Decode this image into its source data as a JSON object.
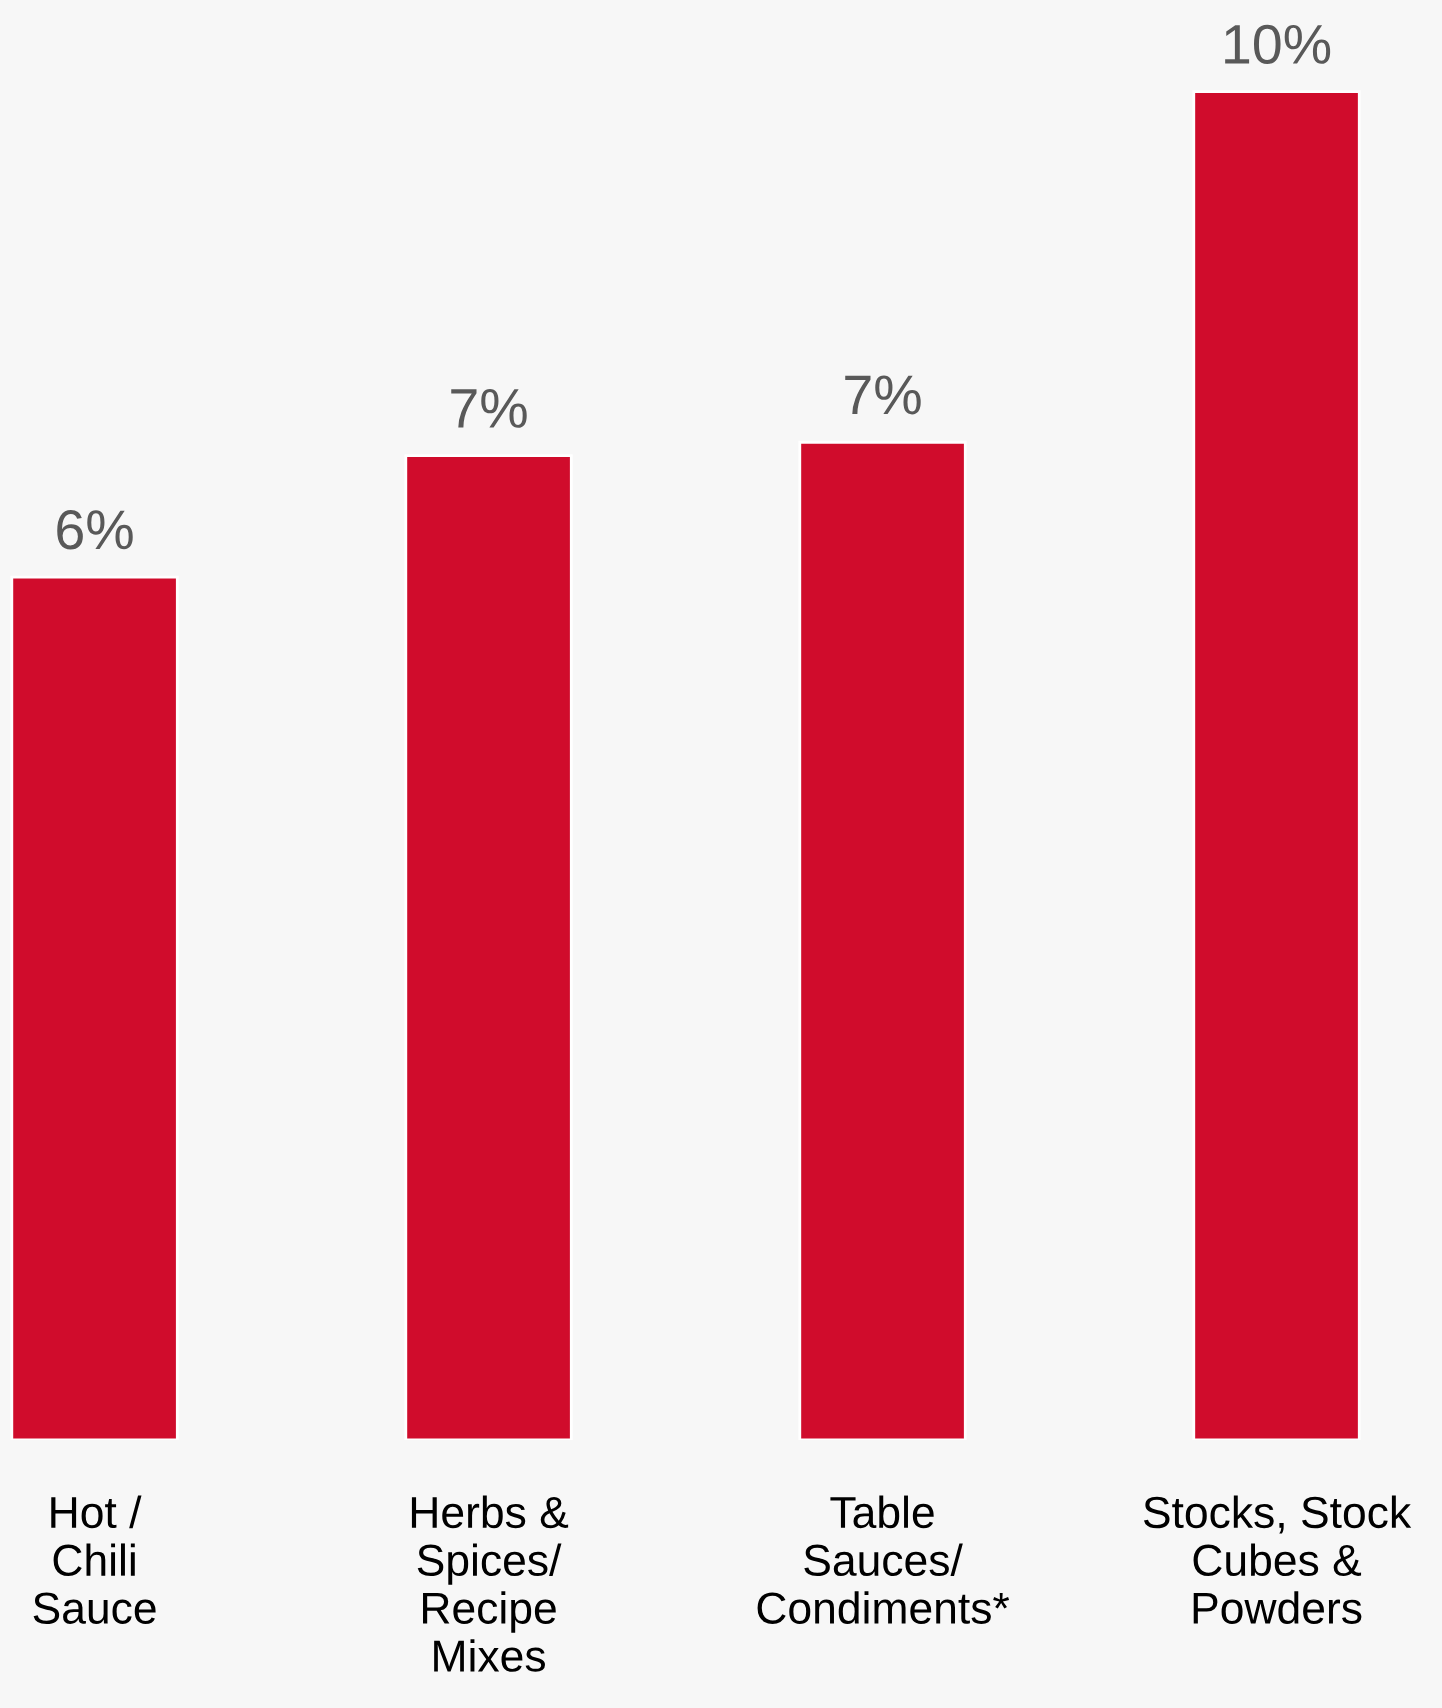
{
  "chart_data": {
    "type": "bar",
    "categories": [
      "Hot /\nChili\nSauce",
      "Herbs &\nSpices/\nRecipe\nMixes",
      "Table\nSauces/\nCondiments*",
      "Stocks, Stock\nCubes &\nPowders"
    ],
    "values": [
      6.4,
      7.3,
      7.4,
      10
    ],
    "value_labels": [
      "6%",
      "7%",
      "7%",
      "10%"
    ],
    "color": "#d00c2c"
  }
}
